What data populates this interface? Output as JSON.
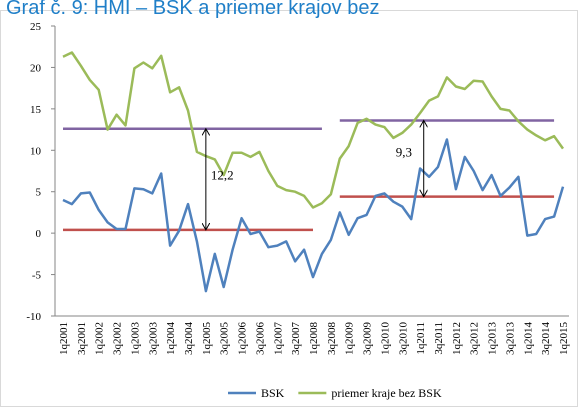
{
  "chart_data": {
    "type": "line",
    "title": "Graf č. 9: HMI – BSK a priemer krajov bez",
    "categories": [
      "1q2001",
      null,
      "3q2001",
      null,
      "1q2002",
      null,
      "3q2002",
      null,
      "1q2003",
      null,
      "3q2003",
      null,
      "1q2004",
      null,
      "3q2004",
      null,
      "1q2005",
      null,
      "3q2005",
      null,
      "1q2006",
      null,
      "3q2006",
      null,
      "1q2007",
      null,
      "3q2007",
      null,
      "1q2008",
      null,
      "3q2008",
      null,
      "1q2009",
      null,
      "3q2009",
      null,
      "1q2010",
      null,
      "3q2010",
      null,
      "1q2011",
      null,
      "3q2011",
      null,
      "1q2012",
      null,
      "3q2012",
      null,
      "1q2013",
      null,
      "3q2013",
      null,
      "1q2014",
      null,
      "3q2014",
      null,
      "1q2015"
    ],
    "series": [
      {
        "name": "BSK",
        "color": "#4f81bd",
        "values": [
          4.0,
          3.5,
          4.8,
          4.9,
          2.8,
          1.3,
          0.5,
          0.5,
          5.4,
          5.3,
          4.8,
          7.2,
          -1.5,
          0.3,
          3.5,
          -1.0,
          -7.0,
          -2.5,
          -6.5,
          -2.0,
          1.8,
          -0.1,
          0.2,
          -1.7,
          -1.5,
          -1.0,
          -3.4,
          -2.0,
          -5.3,
          -2.5,
          -0.8,
          2.5,
          -0.2,
          1.8,
          2.2,
          4.5,
          4.8,
          3.8,
          3.2,
          1.7,
          7.8,
          6.8,
          8.0,
          11.3,
          5.3,
          9.2,
          7.5,
          5.2,
          7.0,
          4.5,
          5.5,
          6.8,
          -0.3,
          -0.1,
          1.7,
          2.0,
          5.6
        ]
      },
      {
        "name": "priemer kraje bez BSK",
        "color": "#9bbb59",
        "values": [
          21.3,
          21.8,
          20.2,
          18.5,
          17.3,
          12.5,
          14.3,
          13.0,
          19.9,
          20.6,
          19.9,
          21.4,
          17.0,
          17.6,
          14.8,
          9.8,
          9.3,
          8.9,
          7.0,
          9.7,
          9.7,
          9.2,
          9.8,
          7.5,
          5.7,
          5.2,
          5.0,
          4.5,
          3.1,
          3.6,
          4.7,
          9.0,
          10.5,
          13.3,
          13.8,
          13.1,
          12.8,
          11.5,
          12.1,
          13.1,
          14.5,
          16.0,
          16.5,
          18.8,
          17.7,
          17.4,
          18.4,
          18.3,
          16.5,
          15.0,
          14.8,
          13.5,
          12.5,
          11.8,
          11.2,
          11.7,
          10.2
        ]
      }
    ],
    "reference_lines": [
      {
        "value": 12.6,
        "color": "#8064a2",
        "from": 0,
        "to": 29
      },
      {
        "value": 0.4,
        "color": "#c0504d",
        "from": 0,
        "to": 28
      },
      {
        "value": 13.6,
        "color": "#8064a2",
        "from": 31,
        "to": 55
      },
      {
        "value": 4.4,
        "color": "#c0504d",
        "from": 31,
        "to": 55
      }
    ],
    "annotations": [
      {
        "text": "12,2",
        "at": 16,
        "from": 0.4,
        "to": 12.6
      },
      {
        "text": "9,3",
        "at": 40.4,
        "from": 4.4,
        "to": 13.6
      }
    ],
    "ylim": [
      -10,
      25
    ],
    "yticks": [
      -10,
      -5,
      0,
      5,
      10,
      15,
      20,
      25
    ]
  }
}
